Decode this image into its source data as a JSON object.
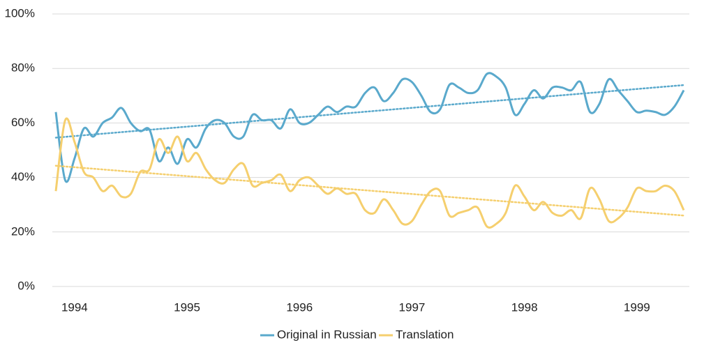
{
  "chart_data": {
    "type": "line",
    "categories": [
      null,
      null,
      "1994",
      null,
      null,
      null,
      null,
      null,
      null,
      null,
      null,
      null,
      null,
      null,
      "1995",
      null,
      null,
      null,
      null,
      null,
      null,
      null,
      null,
      null,
      null,
      null,
      "1996",
      null,
      null,
      null,
      null,
      null,
      null,
      null,
      null,
      null,
      null,
      null,
      "1997",
      null,
      null,
      null,
      null,
      null,
      null,
      null,
      null,
      null,
      null,
      null,
      "1998",
      null,
      null,
      null,
      null,
      null,
      null,
      null,
      null,
      null,
      null,
      null,
      "1999",
      null,
      null,
      null,
      null,
      null
    ],
    "series": [
      {
        "name": "Original in Russian",
        "color": "#5aa9cc",
        "values": [
          64,
          39,
          47,
          58,
          55,
          60,
          62,
          65.5,
          60,
          57,
          57.5,
          46,
          51,
          45,
          54,
          51,
          58,
          61,
          60,
          55,
          55,
          63,
          61,
          61,
          58,
          65,
          60,
          60,
          63,
          66,
          64,
          66,
          66,
          71,
          73,
          68,
          71,
          76,
          75,
          70,
          64,
          65,
          74,
          73,
          71,
          72,
          78,
          77,
          73,
          63,
          67,
          72,
          69,
          73,
          73,
          72,
          75,
          64,
          67,
          76,
          72,
          68,
          64,
          64.5,
          64,
          63,
          66,
          72
        ]
      },
      {
        "name": "Translation",
        "color": "#f5cf6e",
        "values": [
          35,
          61,
          53,
          42,
          40,
          35,
          37,
          33,
          34,
          42,
          43,
          54,
          49,
          55,
          46,
          49,
          43,
          39,
          38,
          43,
          45,
          37,
          38,
          39,
          41,
          35,
          39,
          40,
          37,
          34,
          36,
          34,
          34,
          28,
          27,
          32,
          28,
          23,
          24,
          30,
          35,
          35,
          26,
          27,
          28,
          29,
          22,
          23,
          27,
          37,
          33,
          28,
          31,
          27,
          26,
          28,
          25,
          36,
          32,
          24,
          25,
          29,
          36,
          35,
          35,
          37,
          35,
          28
        ]
      }
    ],
    "ylim": [
      0,
      100
    ],
    "yticks": [
      {
        "value": 0,
        "label": "0%"
      },
      {
        "value": 20,
        "label": "20%"
      },
      {
        "value": 40,
        "label": "40%"
      },
      {
        "value": 60,
        "label": "60%"
      },
      {
        "value": 80,
        "label": "80%"
      },
      {
        "value": 100,
        "label": "100%"
      }
    ],
    "grid": true,
    "trendline": true,
    "legend": "bottom"
  }
}
